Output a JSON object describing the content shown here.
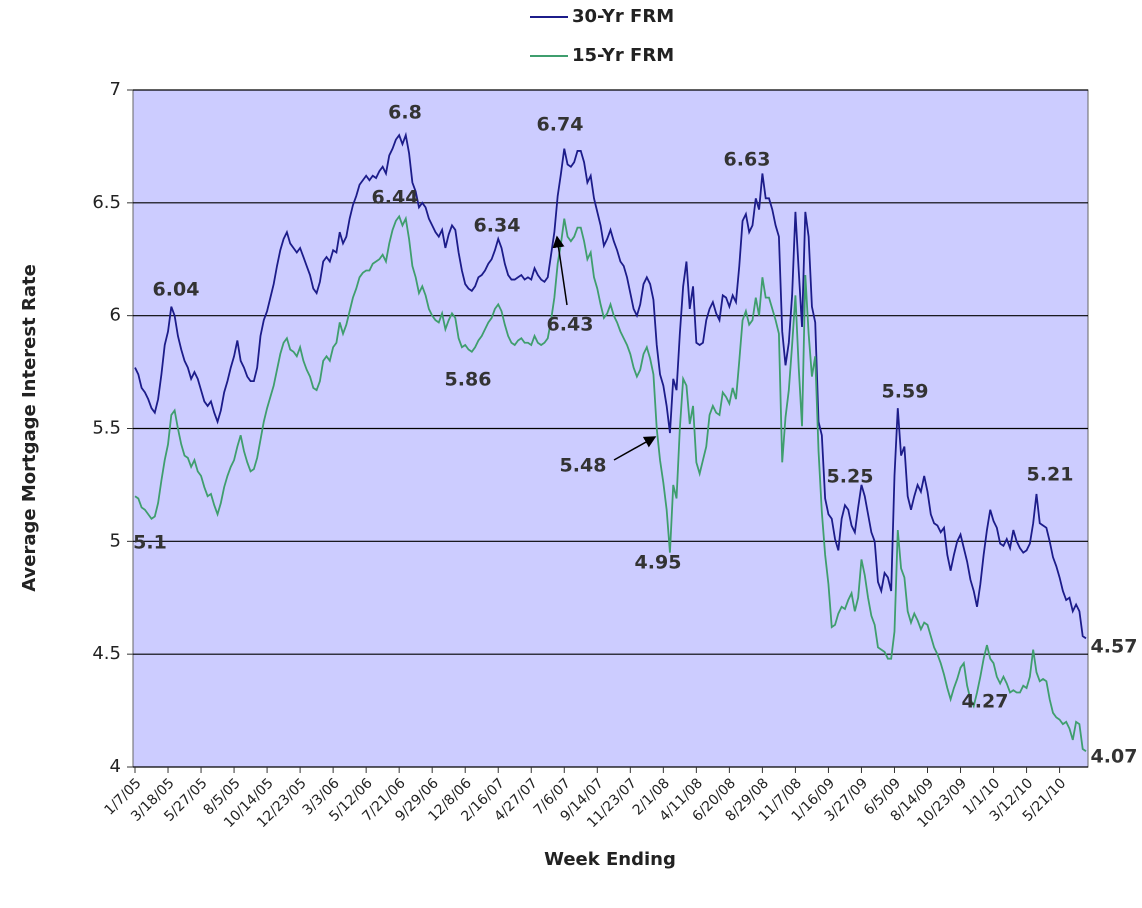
{
  "chart_data": {
    "type": "line",
    "y_label": "Average Mortgage Interest Rate",
    "x_label": "Week Ending",
    "ylim": [
      4,
      7
    ],
    "yticks": [
      4,
      4.5,
      5,
      5.5,
      6,
      6.5,
      7
    ],
    "grid": true,
    "plot_color": "#ccccff",
    "categories": [
      "1/7/05",
      null,
      null,
      null,
      null,
      null,
      null,
      null,
      null,
      null,
      "3/18/05",
      null,
      null,
      null,
      null,
      null,
      null,
      null,
      null,
      null,
      "5/27/05",
      null,
      null,
      null,
      null,
      null,
      null,
      null,
      null,
      null,
      "8/5/05",
      null,
      null,
      null,
      null,
      null,
      null,
      null,
      null,
      null,
      "10/14/05",
      null,
      null,
      null,
      null,
      null,
      null,
      null,
      null,
      null,
      "12/23/05",
      null,
      null,
      null,
      null,
      null,
      null,
      null,
      null,
      null,
      "3/3/06",
      null,
      null,
      null,
      null,
      null,
      null,
      null,
      null,
      null,
      "5/12/06",
      null,
      null,
      null,
      null,
      null,
      null,
      null,
      null,
      null,
      "7/21/06",
      null,
      null,
      null,
      null,
      null,
      null,
      null,
      null,
      null,
      "9/29/06",
      null,
      null,
      null,
      null,
      null,
      null,
      null,
      null,
      null,
      "12/8/06",
      null,
      null,
      null,
      null,
      null,
      null,
      null,
      null,
      null,
      "2/16/07",
      null,
      null,
      null,
      null,
      null,
      null,
      null,
      null,
      null,
      "4/27/07",
      null,
      null,
      null,
      null,
      null,
      null,
      null,
      null,
      null,
      "7/6/07",
      null,
      null,
      null,
      null,
      null,
      null,
      null,
      null,
      null,
      "9/14/07",
      null,
      null,
      null,
      null,
      null,
      null,
      null,
      null,
      null,
      "11/23/07",
      null,
      null,
      null,
      null,
      null,
      null,
      null,
      null,
      null,
      "2/1/08",
      null,
      null,
      null,
      null,
      null,
      null,
      null,
      null,
      null,
      "4/11/08",
      null,
      null,
      null,
      null,
      null,
      null,
      null,
      null,
      null,
      "6/20/08",
      null,
      null,
      null,
      null,
      null,
      null,
      null,
      null,
      null,
      "8/29/08",
      null,
      null,
      null,
      null,
      null,
      null,
      null,
      null,
      null,
      "11/7/08",
      null,
      null,
      null,
      null,
      null,
      null,
      null,
      null,
      null,
      "1/16/09",
      null,
      null,
      null,
      null,
      null,
      null,
      null,
      null,
      null,
      "3/27/09",
      null,
      null,
      null,
      null,
      null,
      null,
      null,
      null,
      null,
      "6/5/09",
      null,
      null,
      null,
      null,
      null,
      null,
      null,
      null,
      null,
      "8/14/09",
      null,
      null,
      null,
      null,
      null,
      null,
      null,
      null,
      null,
      "10/23/09",
      null,
      null,
      null,
      null,
      null,
      null,
      null,
      null,
      null,
      "1/1/10",
      null,
      null,
      null,
      null,
      null,
      null,
      null,
      null,
      null,
      "3/12/10",
      null,
      null,
      null,
      null,
      null,
      null,
      null,
      null,
      null,
      "5/21/10",
      null,
      null,
      null,
      null,
      null,
      null,
      null,
      null
    ],
    "series": [
      {
        "name": "30-Yr FRM",
        "color": "#1c1c8a",
        "values": [
          5.77,
          5.74,
          5.68,
          5.66,
          5.63,
          5.59,
          5.57,
          5.63,
          5.74,
          5.87,
          5.93,
          6.04,
          6.0,
          5.91,
          5.85,
          5.8,
          5.77,
          5.72,
          5.75,
          5.72,
          5.67,
          5.62,
          5.6,
          5.62,
          5.57,
          5.53,
          5.58,
          5.66,
          5.71,
          5.77,
          5.82,
          5.89,
          5.8,
          5.77,
          5.73,
          5.71,
          5.71,
          5.77,
          5.91,
          5.98,
          6.02,
          6.08,
          6.14,
          6.22,
          6.29,
          6.34,
          6.37,
          6.32,
          6.3,
          6.28,
          6.3,
          6.26,
          6.22,
          6.18,
          6.12,
          6.1,
          6.15,
          6.24,
          6.26,
          6.24,
          6.29,
          6.28,
          6.37,
          6.32,
          6.35,
          6.43,
          6.49,
          6.53,
          6.58,
          6.6,
          6.62,
          6.6,
          6.62,
          6.61,
          6.64,
          6.66,
          6.63,
          6.71,
          6.74,
          6.78,
          6.8,
          6.76,
          6.8,
          6.72,
          6.59,
          6.55,
          6.48,
          6.5,
          6.48,
          6.43,
          6.4,
          6.37,
          6.35,
          6.38,
          6.3,
          6.36,
          6.4,
          6.38,
          6.28,
          6.2,
          6.14,
          6.12,
          6.11,
          6.13,
          6.17,
          6.18,
          6.2,
          6.23,
          6.25,
          6.29,
          6.34,
          6.3,
          6.23,
          6.18,
          6.16,
          6.16,
          6.17,
          6.18,
          6.16,
          6.17,
          6.16,
          6.21,
          6.18,
          6.16,
          6.15,
          6.17,
          6.27,
          6.37,
          6.53,
          6.63,
          6.74,
          6.67,
          6.66,
          6.68,
          6.73,
          6.73,
          6.68,
          6.59,
          6.62,
          6.52,
          6.46,
          6.4,
          6.31,
          6.34,
          6.38,
          6.33,
          6.29,
          6.24,
          6.22,
          6.17,
          6.1,
          6.03,
          6.0,
          6.05,
          6.14,
          6.17,
          6.14,
          6.07,
          5.87,
          5.74,
          5.69,
          5.6,
          5.48,
          5.72,
          5.67,
          5.92,
          6.13,
          6.24,
          6.03,
          6.13,
          5.88,
          5.87,
          5.88,
          5.98,
          6.03,
          6.06,
          6.01,
          5.98,
          6.09,
          6.08,
          6.04,
          6.09,
          6.06,
          6.22,
          6.42,
          6.45,
          6.37,
          6.4,
          6.52,
          6.47,
          6.63,
          6.52,
          6.52,
          6.47,
          6.4,
          6.35,
          5.93,
          5.78,
          5.88,
          6.09,
          6.46,
          6.2,
          5.95,
          6.46,
          6.35,
          6.04,
          5.97,
          5.53,
          5.47,
          5.19,
          5.12,
          5.1,
          5.01,
          4.96,
          5.1,
          5.16,
          5.14,
          5.07,
          5.04,
          5.15,
          5.25,
          5.2,
          5.12,
          5.04,
          5.0,
          4.82,
          4.78,
          4.86,
          4.84,
          4.78,
          5.29,
          5.59,
          5.38,
          5.42,
          5.2,
          5.14,
          5.2,
          5.25,
          5.22,
          5.29,
          5.22,
          5.12,
          5.08,
          5.07,
          5.04,
          5.06,
          4.94,
          4.87,
          4.94,
          5.0,
          5.03,
          4.97,
          4.91,
          4.83,
          4.78,
          4.71,
          4.81,
          4.94,
          5.05,
          5.14,
          5.09,
          5.06,
          4.99,
          4.98,
          5.01,
          4.97,
          5.05,
          5.0,
          4.97,
          4.95,
          4.96,
          4.99,
          5.08,
          5.21,
          5.08,
          5.07,
          5.06,
          5.0,
          4.93,
          4.89,
          4.84,
          4.78,
          4.74,
          4.75,
          4.69,
          4.72,
          4.69,
          4.58,
          4.57
        ]
      },
      {
        "name": "15-Yr FRM",
        "color": "#3f9e6e",
        "values": [
          5.2,
          5.19,
          5.15,
          5.14,
          5.12,
          5.1,
          5.11,
          5.17,
          5.27,
          5.36,
          5.43,
          5.56,
          5.58,
          5.5,
          5.43,
          5.38,
          5.37,
          5.33,
          5.36,
          5.31,
          5.29,
          5.24,
          5.2,
          5.21,
          5.16,
          5.12,
          5.17,
          5.24,
          5.29,
          5.33,
          5.36,
          5.42,
          5.47,
          5.4,
          5.35,
          5.31,
          5.32,
          5.37,
          5.45,
          5.53,
          5.59,
          5.64,
          5.69,
          5.76,
          5.83,
          5.88,
          5.9,
          5.85,
          5.84,
          5.82,
          5.86,
          5.8,
          5.76,
          5.73,
          5.68,
          5.67,
          5.71,
          5.8,
          5.82,
          5.8,
          5.86,
          5.88,
          5.97,
          5.92,
          5.96,
          6.02,
          6.08,
          6.12,
          6.17,
          6.19,
          6.2,
          6.2,
          6.23,
          6.24,
          6.25,
          6.27,
          6.24,
          6.32,
          6.38,
          6.42,
          6.44,
          6.4,
          6.43,
          6.34,
          6.22,
          6.17,
          6.1,
          6.13,
          6.09,
          6.03,
          6.0,
          5.98,
          5.97,
          6.01,
          5.94,
          5.98,
          6.01,
          5.99,
          5.9,
          5.86,
          5.87,
          5.85,
          5.84,
          5.86,
          5.89,
          5.91,
          5.94,
          5.97,
          5.99,
          6.03,
          6.05,
          6.02,
          5.96,
          5.91,
          5.88,
          5.87,
          5.89,
          5.9,
          5.88,
          5.88,
          5.87,
          5.91,
          5.88,
          5.87,
          5.88,
          5.9,
          5.98,
          6.08,
          6.23,
          6.32,
          6.43,
          6.35,
          6.33,
          6.35,
          6.39,
          6.39,
          6.33,
          6.25,
          6.28,
          6.17,
          6.12,
          6.05,
          5.99,
          6.01,
          6.05,
          6.0,
          5.97,
          5.93,
          5.9,
          5.87,
          5.83,
          5.77,
          5.73,
          5.76,
          5.83,
          5.86,
          5.81,
          5.74,
          5.5,
          5.36,
          5.26,
          5.14,
          4.95,
          5.25,
          5.19,
          5.5,
          5.72,
          5.69,
          5.52,
          5.6,
          5.35,
          5.3,
          5.36,
          5.42,
          5.56,
          5.6,
          5.57,
          5.56,
          5.66,
          5.64,
          5.61,
          5.68,
          5.63,
          5.8,
          5.98,
          6.02,
          5.96,
          5.98,
          6.08,
          6.0,
          6.17,
          6.08,
          6.08,
          6.03,
          5.98,
          5.92,
          5.35,
          5.55,
          5.67,
          5.87,
          6.09,
          5.77,
          5.51,
          6.18,
          5.92,
          5.73,
          5.82,
          5.4,
          5.13,
          4.94,
          4.81,
          4.62,
          4.63,
          4.68,
          4.71,
          4.7,
          4.74,
          4.77,
          4.69,
          4.75,
          4.92,
          4.85,
          4.75,
          4.67,
          4.63,
          4.53,
          4.52,
          4.51,
          4.48,
          4.48,
          4.6,
          5.05,
          4.88,
          4.84,
          4.69,
          4.64,
          4.68,
          4.65,
          4.61,
          4.64,
          4.63,
          4.58,
          4.53,
          4.5,
          4.46,
          4.41,
          4.35,
          4.3,
          4.35,
          4.39,
          4.44,
          4.46,
          4.36,
          4.3,
          4.27,
          4.33,
          4.4,
          4.48,
          4.54,
          4.48,
          4.46,
          4.4,
          4.37,
          4.4,
          4.37,
          4.33,
          4.34,
          4.33,
          4.33,
          4.36,
          4.35,
          4.4,
          4.52,
          4.42,
          4.38,
          4.39,
          4.38,
          4.3,
          4.24,
          4.22,
          4.21,
          4.19,
          4.2,
          4.17,
          4.12,
          4.2,
          4.19,
          4.08,
          4.07
        ]
      }
    ]
  }
}
